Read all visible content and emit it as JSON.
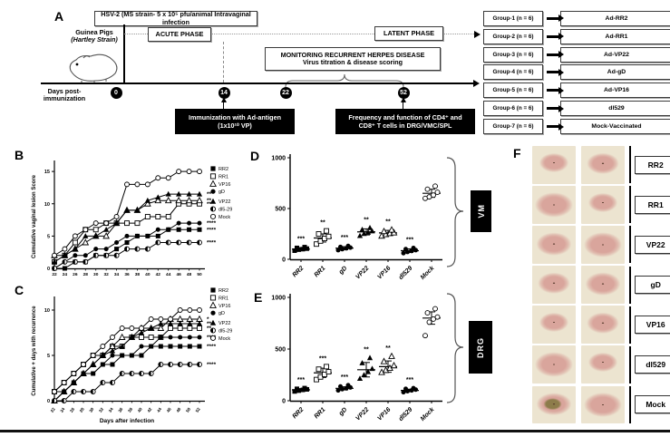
{
  "palette": {
    "ink": "#000000",
    "boxshadow": "#aaaaaa",
    "dotted_line": "#999999"
  },
  "panelA": {
    "label": "A",
    "infection_box": "HSV-2 (MS strain- 5 x 10⁵ pfu/animal Intravaginal infection",
    "animal": "Guinea Pigs",
    "animal_strain": "(Hartley Strain)",
    "acute_phase": "ACUTE PHASE",
    "latent_phase": "LATENT PHASE",
    "monitoring_line1": "MONITORING RECURRENT HERPES DISEASE",
    "monitoring_line2": "Virus titration & disease scoring",
    "timeline_label": "Days post- immunization",
    "timeline_days": [
      "0",
      "14",
      "22",
      "52"
    ],
    "immunization_line1": "Immunization with Ad-antigen",
    "immunization_line2": "(1x10¹⁰ VP)",
    "frequency_line1": "Frequency and function of CD4⁺ and",
    "frequency_line2": "CD8⁺ T  cells in DRG/VMC/SPL",
    "groups": [
      {
        "name": "Group-1 (n = 6)",
        "vaccine": "Ad-RR2"
      },
      {
        "name": "Group-2 (n = 6)",
        "vaccine": "Ad-RR1"
      },
      {
        "name": "Group-3 (n = 6)",
        "vaccine": "Ad-VP22"
      },
      {
        "name": "Group-4 (n = 6)",
        "vaccine": "Ad-gD"
      },
      {
        "name": "Group-5 (n = 6)",
        "vaccine": "Ad-VP16"
      },
      {
        "name": "Group-6 (n = 6)",
        "vaccine": "dl529"
      },
      {
        "name": "Group-7 (n = 6)",
        "vaccine": "Mock-Vaccinated"
      }
    ]
  },
  "chart_data": [
    {
      "id": "B",
      "label": "B",
      "type": "line",
      "ylabel": "Cumulative vaginal lesion Score",
      "xlabel": "",
      "ylim": [
        0,
        16
      ],
      "yticks": [
        0,
        5,
        10,
        15
      ],
      "x": [
        22,
        24,
        26,
        28,
        30,
        32,
        34,
        36,
        38,
        40,
        42,
        44,
        46,
        48,
        50
      ],
      "series": [
        {
          "name": "RR2",
          "marker": "filled-square",
          "sig": "****",
          "values": [
            0,
            0,
            1,
            1,
            2,
            2,
            3,
            4,
            5,
            5,
            5,
            6,
            6,
            6,
            6
          ]
        },
        {
          "name": "RR1",
          "marker": "open-square",
          "sig": "**",
          "values": [
            1,
            2,
            4,
            6,
            6,
            7,
            7,
            7,
            7,
            8,
            8,
            8,
            10,
            10,
            10
          ]
        },
        {
          "name": "VP16",
          "marker": "open-triangle",
          "sig": "**",
          "values": [
            2,
            2,
            3,
            4,
            5,
            5,
            7,
            9,
            9,
            10,
            10.5,
            10.5,
            10.5,
            10.5,
            10.5
          ]
        },
        {
          "name": "gD",
          "marker": "filled-circle",
          "sig": "****",
          "values": [
            0,
            1,
            2,
            2,
            3,
            3,
            4,
            5,
            5,
            5,
            6,
            6,
            7,
            7,
            7
          ]
        },
        {
          "name": "VP22",
          "marker": "filled-triangle",
          "sig": "**",
          "values": [
            1,
            2,
            3,
            5,
            5,
            6,
            7,
            9,
            9,
            10.5,
            11,
            11.5,
            11.5,
            11.5,
            11.5
          ]
        },
        {
          "name": "dl5-29",
          "marker": "half-circle",
          "sig": "****",
          "values": [
            0,
            1,
            1,
            1,
            2,
            2,
            2,
            3,
            3,
            3,
            4,
            4,
            4,
            4,
            4
          ]
        },
        {
          "name": "Mock",
          "marker": "open-circle",
          "sig": "",
          "values": [
            2,
            3,
            5,
            6,
            7,
            7,
            8,
            13,
            13,
            13,
            14,
            14,
            15,
            15,
            15
          ]
        }
      ]
    },
    {
      "id": "C",
      "label": "C",
      "type": "line",
      "ylabel": "Cumulative + days with recurrence",
      "xlabel": "Days after infection",
      "ylim": [
        0,
        11
      ],
      "yticks": [
        0,
        5,
        10
      ],
      "x": [
        22,
        24,
        26,
        28,
        30,
        32,
        34,
        36,
        38,
        40,
        42,
        44,
        46,
        48,
        50,
        52
      ],
      "series": [
        {
          "name": "RR2",
          "marker": "filled-square",
          "sig": "****",
          "values": [
            1,
            1,
            2,
            3,
            3,
            4,
            4,
            5,
            5,
            5,
            6,
            6,
            6,
            6,
            6,
            6
          ]
        },
        {
          "name": "RR1",
          "marker": "open-square",
          "sig": "**",
          "values": [
            1,
            2,
            3,
            4,
            5,
            5,
            6,
            6,
            7,
            7,
            7,
            7,
            8,
            8,
            8,
            8
          ]
        },
        {
          "name": "VP16",
          "marker": "open-triangle",
          "sig": "*",
          "values": [
            0,
            1,
            2,
            3,
            4,
            5,
            6,
            7,
            7,
            8,
            8,
            8,
            9,
            9,
            9,
            9
          ]
        },
        {
          "name": "gD",
          "marker": "filled-circle",
          "sig": "****",
          "values": [
            0,
            1,
            2,
            3,
            3,
            4,
            5,
            5,
            5,
            6,
            6,
            7,
            7,
            7,
            7,
            7
          ]
        },
        {
          "name": "VP22",
          "marker": "filled-triangle",
          "sig": "**",
          "values": [
            0,
            1,
            2,
            3,
            4,
            5,
            5.5,
            6,
            7,
            7.5,
            8,
            8.5,
            8.5,
            8.5,
            8.5,
            8.5
          ]
        },
        {
          "name": "dl5-29",
          "marker": "half-circle",
          "sig": "****",
          "values": [
            0,
            0,
            1,
            1,
            1,
            2,
            2,
            3,
            3,
            3,
            3,
            4,
            4,
            4,
            4,
            4
          ]
        },
        {
          "name": "Mock",
          "marker": "open-circle",
          "sig": "",
          "values": [
            1,
            2,
            3,
            4,
            5,
            6,
            7,
            8,
            8,
            8,
            9,
            9,
            9,
            10,
            10,
            10
          ]
        }
      ]
    },
    {
      "id": "D",
      "label": "D",
      "type": "scatter",
      "region_label": "VM",
      "ylim": [
        0,
        1000
      ],
      "yticks": [
        0,
        500,
        1000
      ],
      "categories": [
        "RR2",
        "RR1",
        "gD",
        "VP22",
        "VP16",
        "dl529",
        "Mock"
      ],
      "markers": [
        "filled-square",
        "open-square",
        "filled-circle",
        "filled-triangle",
        "open-triangle",
        "filled-circle",
        "open-circle"
      ],
      "sig": [
        "***",
        "**",
        "***",
        "**",
        "**",
        "***",
        ""
      ],
      "means": [
        100,
        210,
        110,
        270,
        260,
        85,
        650
      ],
      "sems": [
        15,
        40,
        15,
        30,
        25,
        18,
        40
      ],
      "points": [
        [
          85,
          95,
          100,
          105,
          112,
          120
        ],
        [
          150,
          180,
          205,
          225,
          250,
          280
        ],
        [
          90,
          100,
          108,
          115,
          122,
          132
        ],
        [
          232,
          252,
          265,
          278,
          292,
          310
        ],
        [
          230,
          245,
          255,
          262,
          275,
          290
        ],
        [
          60,
          72,
          82,
          90,
          100,
          112
        ],
        [
          600,
          615,
          632,
          660,
          690,
          720
        ]
      ]
    },
    {
      "id": "E",
      "label": "E",
      "type": "scatter",
      "region_label": "DRG",
      "ylim": [
        0,
        1000
      ],
      "yticks": [
        0,
        500,
        1000
      ],
      "categories": [
        "RR2",
        "RR1",
        "gD",
        "VP22",
        "VP16",
        "dl529",
        "Mock"
      ],
      "markers": [
        "filled-square",
        "open-square",
        "filled-circle",
        "filled-triangle",
        "open-triangle",
        "filled-circle",
        "open-circle"
      ],
      "sig": [
        "***",
        "***",
        "***",
        "**",
        "**",
        "***",
        ""
      ],
      "means": [
        105,
        270,
        120,
        300,
        330,
        100,
        800
      ],
      "sems": [
        12,
        45,
        15,
        70,
        55,
        12,
        60
      ],
      "points": [
        [
          90,
          98,
          105,
          110,
          115,
          122
        ],
        [
          205,
          230,
          255,
          280,
          305,
          330
        ],
        [
          100,
          112,
          120,
          128,
          138,
          150
        ],
        [
          215,
          250,
          280,
          310,
          365,
          415
        ],
        [
          275,
          295,
          315,
          340,
          380,
          430
        ],
        [
          82,
          92,
          100,
          108,
          115,
          122
        ],
        [
          630,
          760,
          790,
          810,
          850,
          890
        ]
      ]
    }
  ],
  "panelF": {
    "label": "F",
    "rows": [
      "RR2",
      "RR1",
      "VP22",
      "gD",
      "VP16",
      "dl529",
      "Mock"
    ],
    "photo_colors": {
      "fur": "#ece4d0",
      "skin": "#d9a59c",
      "dark": "#573a2c",
      "lesion": "#8d7c4b"
    }
  }
}
